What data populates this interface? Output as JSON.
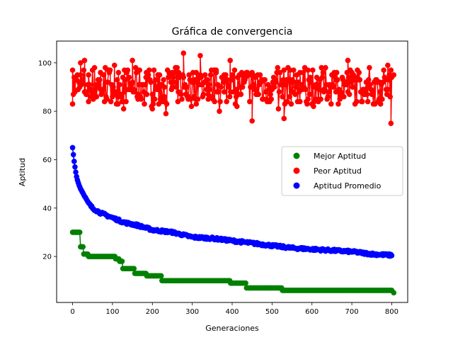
{
  "chart_data": {
    "type": "scatter",
    "title": "Gráfica de convergencia",
    "xlabel": "Generaciones",
    "ylabel": "Aptitud",
    "xlim": [
      -40,
      840
    ],
    "ylim": [
      1,
      109
    ],
    "xticks": [
      0,
      100,
      200,
      300,
      400,
      500,
      600,
      700,
      800
    ],
    "yticks": [
      20,
      40,
      60,
      80,
      100
    ],
    "legend_position": "center-right",
    "grid": false,
    "generations": 800,
    "series": [
      {
        "name": "Mejor Aptitud",
        "color": "#008000",
        "points": [
          [
            0,
            30
          ],
          [
            18,
            30
          ],
          [
            19,
            24
          ],
          [
            27,
            24
          ],
          [
            28,
            21
          ],
          [
            38,
            21
          ],
          [
            39,
            20
          ],
          [
            107,
            20
          ],
          [
            108,
            19
          ],
          [
            117,
            19
          ],
          [
            118,
            18
          ],
          [
            124,
            18
          ],
          [
            125,
            15
          ],
          [
            155,
            15
          ],
          [
            156,
            13
          ],
          [
            185,
            13
          ],
          [
            186,
            12
          ],
          [
            222,
            12
          ],
          [
            223,
            10
          ],
          [
            394,
            10
          ],
          [
            395,
            9
          ],
          [
            435,
            9
          ],
          [
            436,
            7
          ],
          [
            524,
            7
          ],
          [
            525,
            6
          ],
          [
            800,
            6
          ],
          [
            805,
            5
          ]
        ]
      },
      {
        "name": "Peor Aptitud",
        "color": "#ff0000",
        "min": 75,
        "max": 104,
        "typical_range": [
          79,
          98
        ],
        "points": [
          [
            0,
            97
          ],
          [
            20,
            100
          ],
          [
            30,
            101
          ],
          [
            40,
            95
          ],
          [
            55,
            98
          ],
          [
            70,
            96
          ],
          [
            90,
            97
          ],
          [
            105,
            99
          ],
          [
            115,
            96
          ],
          [
            130,
            88
          ],
          [
            150,
            101
          ],
          [
            165,
            87
          ],
          [
            185,
            96
          ],
          [
            200,
            87
          ],
          [
            215,
            95
          ],
          [
            230,
            86
          ],
          [
            250,
            96
          ],
          [
            265,
            88
          ],
          [
            278,
            104
          ],
          [
            290,
            85
          ],
          [
            310,
            96
          ],
          [
            320,
            103
          ],
          [
            340,
            87
          ],
          [
            360,
            96
          ],
          [
            380,
            88
          ],
          [
            395,
            101
          ],
          [
            410,
            89
          ],
          [
            430,
            92
          ],
          [
            450,
            76
          ],
          [
            460,
            87
          ],
          [
            470,
            95
          ],
          [
            500,
            89
          ],
          [
            530,
            77
          ],
          [
            545,
            97
          ],
          [
            570,
            96
          ],
          [
            590,
            97
          ],
          [
            610,
            85
          ],
          [
            630,
            89
          ],
          [
            660,
            88
          ],
          [
            690,
            101
          ],
          [
            700,
            94
          ],
          [
            740,
            90
          ],
          [
            770,
            92
          ],
          [
            790,
            99
          ],
          [
            798,
            75
          ],
          [
            805,
            95
          ]
        ]
      },
      {
        "name": "Aptitud Promedio",
        "color": "#0000ff",
        "points": [
          [
            0,
            65
          ],
          [
            2,
            62
          ],
          [
            5,
            58
          ],
          [
            10,
            53
          ],
          [
            15,
            50
          ],
          [
            20,
            48
          ],
          [
            30,
            45
          ],
          [
            40,
            42
          ],
          [
            50,
            40
          ],
          [
            70,
            38
          ],
          [
            100,
            36
          ],
          [
            130,
            34
          ],
          [
            160,
            33
          ],
          [
            200,
            31
          ],
          [
            250,
            30
          ],
          [
            300,
            28
          ],
          [
            350,
            27.5
          ],
          [
            400,
            26.5
          ],
          [
            450,
            25.5
          ],
          [
            500,
            24.5
          ],
          [
            550,
            23.5
          ],
          [
            600,
            23
          ],
          [
            650,
            22.5
          ],
          [
            700,
            22
          ],
          [
            750,
            21
          ],
          [
            800,
            20.5
          ]
        ]
      }
    ]
  }
}
